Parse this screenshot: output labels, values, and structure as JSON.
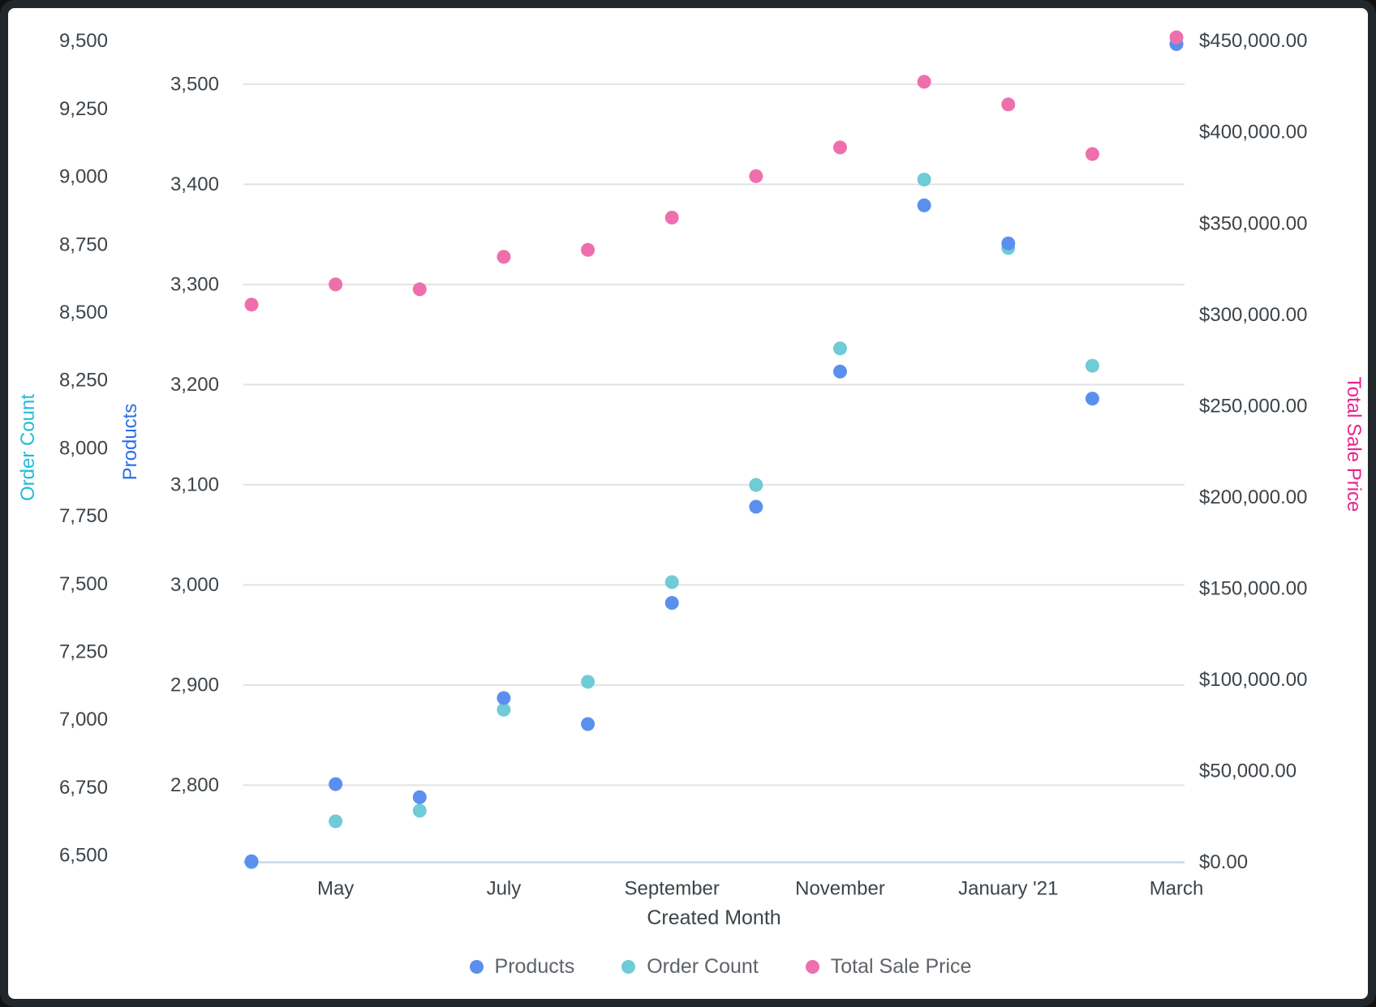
{
  "chart_data": {
    "type": "scatter",
    "x_axis": {
      "title": "Created Month",
      "num_slots": 12,
      "tick_labels": [
        {
          "label": "May",
          "slot": 1
        },
        {
          "label": "July",
          "slot": 3
        },
        {
          "label": "September",
          "slot": 5
        },
        {
          "label": "November",
          "slot": 7
        },
        {
          "label": "January '21",
          "slot": 9
        },
        {
          "label": "March",
          "slot": 11
        }
      ]
    },
    "axes": {
      "order_count": {
        "title": "Order Count",
        "side": "outer-left",
        "title_color": "#1fbcd8",
        "min": 6475,
        "max": 9511,
        "ticks": [
          {
            "label": "6,500",
            "value": 6500
          },
          {
            "label": "6,750",
            "value": 6750
          },
          {
            "label": "7,000",
            "value": 7000
          },
          {
            "label": "7,250",
            "value": 7250
          },
          {
            "label": "7,500",
            "value": 7500
          },
          {
            "label": "7,750",
            "value": 7750
          },
          {
            "label": "8,000",
            "value": 8000
          },
          {
            "label": "8,250",
            "value": 8250
          },
          {
            "label": "8,500",
            "value": 8500
          },
          {
            "label": "8,750",
            "value": 8750
          },
          {
            "label": "9,000",
            "value": 9000
          },
          {
            "label": "9,250",
            "value": 9250
          },
          {
            "label": "9,500",
            "value": 9500
          }
        ]
      },
      "products": {
        "title": "Products",
        "side": "inner-left",
        "title_color": "#2b6cec",
        "min": 2723,
        "max": 3546,
        "gridlines": true,
        "ticks": [
          {
            "label": "2,800",
            "value": 2800
          },
          {
            "label": "2,900",
            "value": 2900
          },
          {
            "label": "3,000",
            "value": 3000
          },
          {
            "label": "3,100",
            "value": 3100
          },
          {
            "label": "3,200",
            "value": 3200
          },
          {
            "label": "3,300",
            "value": 3300
          },
          {
            "label": "3,400",
            "value": 3400
          },
          {
            "label": "3,500",
            "value": 3500
          }
        ]
      },
      "total_sale_price": {
        "title": "Total Sale Price",
        "side": "right",
        "title_color": "#e8238f",
        "min": 0,
        "max": 451650,
        "ticks": [
          {
            "label": "$0.00",
            "value": 0
          },
          {
            "label": "$50,000.00",
            "value": 50000
          },
          {
            "label": "$100,000.00",
            "value": 100000
          },
          {
            "label": "$150,000.00",
            "value": 150000
          },
          {
            "label": "$200,000.00",
            "value": 200000
          },
          {
            "label": "$250,000.00",
            "value": 250000
          },
          {
            "label": "$300,000.00",
            "value": 300000
          },
          {
            "label": "$350,000.00",
            "value": 350000
          },
          {
            "label": "$400,000.00",
            "value": 400000
          },
          {
            "label": "$450,000.00",
            "value": 450000
          }
        ]
      }
    },
    "series": [
      {
        "name": "Order Count",
        "axis": "order_count",
        "color": "#6fcbd6",
        "values": [
          6475,
          6626,
          6665,
          7037,
          7140,
          7507,
          7865,
          8368,
          8990,
          8738,
          8304,
          9490
        ]
      },
      {
        "name": "Products",
        "axis": "products",
        "color": "#5b8fee",
        "values": [
          2724,
          2801,
          2788,
          2887,
          2861,
          2982,
          3078,
          3213,
          3379,
          3341,
          3186,
          3540
        ]
      },
      {
        "name": "Total Sale Price",
        "axis": "total_sale_price",
        "color": "#ef6fad",
        "values": [
          305600,
          316700,
          314000,
          331800,
          335600,
          353300,
          376000,
          391700,
          427700,
          415300,
          388100,
          452100
        ]
      }
    ],
    "legend": [
      {
        "label": "Products",
        "color": "#5b8fee"
      },
      {
        "label": "Order Count",
        "color": "#6fcbd6"
      },
      {
        "label": "Total Sale Price",
        "color": "#ef6fad"
      }
    ],
    "layout_hints": {
      "gridline_color": "#e2e2e2",
      "axis_line_color": "#c9d6ee",
      "tick_text_color": "#3d4449",
      "legend_text_color": "#5f6368",
      "frame_color": "#22272b",
      "background": "#ffffff",
      "legend_position": "bottom-center",
      "grid": "horizontal-only"
    }
  }
}
